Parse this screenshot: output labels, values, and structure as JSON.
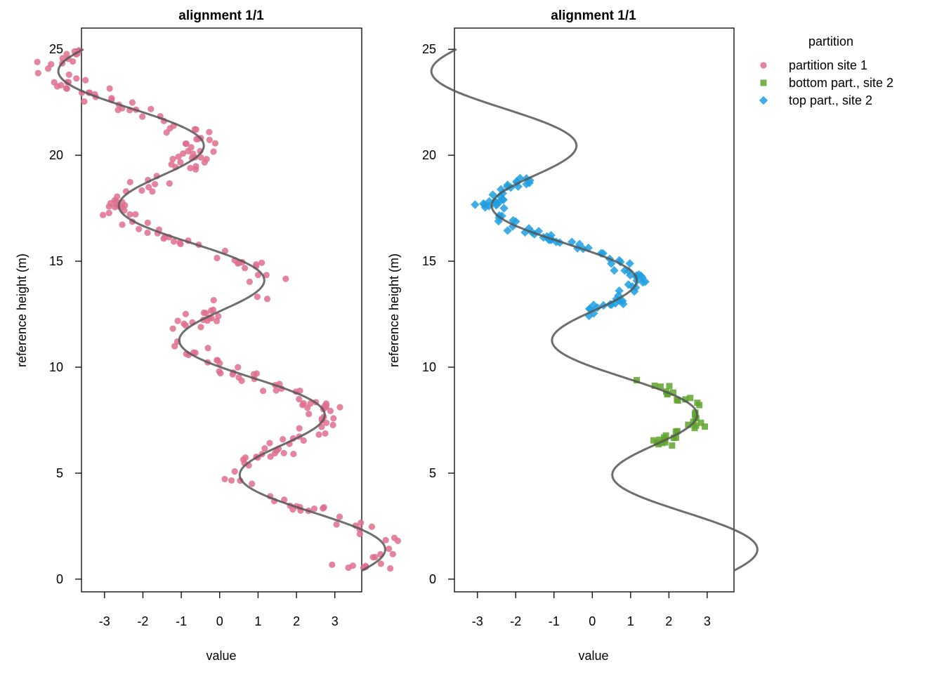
{
  "colors": {
    "site1": "#df6f8e",
    "bottom": "#5fa52e",
    "top": "#1f9fe0",
    "curve": "#555555",
    "axis": "#000000"
  },
  "chart_data": [
    {
      "type": "scatter",
      "title": "alignment 1/1",
      "xlabel": "value",
      "ylabel": "reference height (m)",
      "xlim": [
        -3.6,
        3.7
      ],
      "ylim": [
        -0.6,
        26.0
      ],
      "xticks": [
        "-3",
        "-2",
        "-1",
        "0",
        "1",
        "2",
        "3"
      ],
      "yticks": [
        "0",
        "5",
        "10",
        "15",
        "20",
        "25"
      ],
      "curve": {
        "ymin": 0.4,
        "ymax": 25.0,
        "trend": 3.2,
        "gradient": -0.248,
        "amplitude": 1.48,
        "period": 6.35,
        "phase": 6.3
      },
      "series": [
        {
          "key": "site1",
          "shape": "circle",
          "ymin": 0.4,
          "ymax": 25.0,
          "n": 260,
          "noise": 0.3
        }
      ]
    },
    {
      "type": "scatter",
      "title": "alignment 1/1",
      "xlabel": "value",
      "ylabel": "reference height (m)",
      "xlim": [
        -3.6,
        3.7
      ],
      "ylim": [
        -0.6,
        26.0
      ],
      "xticks": [
        "-3",
        "-2",
        "-1",
        "0",
        "1",
        "2",
        "3"
      ],
      "yticks": [
        "0",
        "5",
        "10",
        "15",
        "20",
        "25"
      ],
      "curve": {
        "ymin": 0.4,
        "ymax": 25.0,
        "trend": 3.2,
        "gradient": -0.248,
        "amplitude": 1.48,
        "period": 6.35,
        "phase": 6.3
      },
      "series": [
        {
          "key": "bottom",
          "shape": "square",
          "ymin": 6.3,
          "ymax": 9.6,
          "n": 38,
          "noise": 0.18
        },
        {
          "key": "top",
          "shape": "diamond",
          "ymin": 12.4,
          "ymax": 19.1,
          "n": 95,
          "noise": 0.18
        }
      ]
    }
  ],
  "legend": {
    "title": "partition",
    "items": [
      {
        "key": "site1",
        "label": "partition site 1",
        "shape": "circle"
      },
      {
        "key": "bottom",
        "label": "bottom part., site 2",
        "shape": "square"
      },
      {
        "key": "top",
        "label": "top part., site 2",
        "shape": "diamond"
      }
    ]
  }
}
